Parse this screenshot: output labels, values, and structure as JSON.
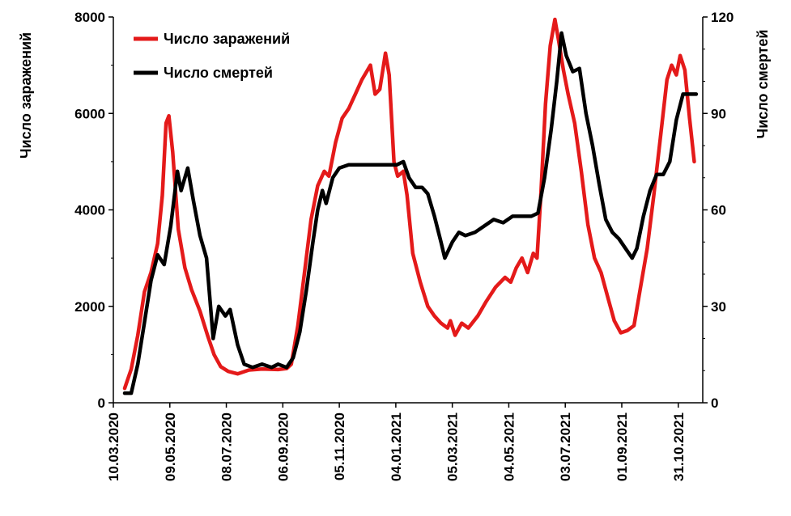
{
  "chart_data": {
    "type": "line",
    "title": "",
    "x_tick_labels": [
      "10.03.2020",
      "09.05.2020",
      "08.07.2020",
      "06.09.2020",
      "05.11.2020",
      "04.01.2021",
      "05.03.2021",
      "04.05.2021",
      "03.07.2021",
      "01.09.2021",
      "31.10.2021"
    ],
    "x_range": [
      "10.03.2020",
      "26.11.2021"
    ],
    "y_left": {
      "label": "Число заражений",
      "ylim": [
        0,
        8000
      ],
      "ticks": [
        "0",
        "2000",
        "4000",
        "6000",
        "8000"
      ]
    },
    "y_right": {
      "label": "Число смертей",
      "ylim": [
        0,
        120
      ],
      "ticks": [
        "0",
        "30",
        "60",
        "90",
        "120"
      ]
    },
    "grid": false,
    "legend_position": "top-left",
    "series": [
      {
        "name": "Число заражений",
        "axis": "left",
        "color": "#e41a1a",
        "points": [
          [
            "2020-03-22",
            300
          ],
          [
            "2020-03-29",
            700
          ],
          [
            "2020-04-05",
            1400
          ],
          [
            "2020-04-12",
            2300
          ],
          [
            "2020-04-19",
            2700
          ],
          [
            "2020-04-26",
            3300
          ],
          [
            "2020-05-01",
            4300
          ],
          [
            "2020-05-05",
            5800
          ],
          [
            "2020-05-08",
            5950
          ],
          [
            "2020-05-12",
            5200
          ],
          [
            "2020-05-18",
            3600
          ],
          [
            "2020-05-25",
            2800
          ],
          [
            "2020-06-01",
            2350
          ],
          [
            "2020-06-10",
            1900
          ],
          [
            "2020-06-18",
            1400
          ],
          [
            "2020-06-25",
            1000
          ],
          [
            "2020-07-02",
            750
          ],
          [
            "2020-07-10",
            650
          ],
          [
            "2020-07-20",
            600
          ],
          [
            "2020-08-01",
            680
          ],
          [
            "2020-08-15",
            700
          ],
          [
            "2020-09-01",
            690
          ],
          [
            "2020-09-10",
            710
          ],
          [
            "2020-09-15",
            800
          ],
          [
            "2020-09-22",
            1600
          ],
          [
            "2020-09-29",
            2700
          ],
          [
            "2020-10-06",
            3800
          ],
          [
            "2020-10-13",
            4500
          ],
          [
            "2020-10-20",
            4800
          ],
          [
            "2020-10-25",
            4700
          ],
          [
            "2020-11-01",
            5400
          ],
          [
            "2020-11-08",
            5900
          ],
          [
            "2020-11-15",
            6100
          ],
          [
            "2020-11-22",
            6400
          ],
          [
            "2020-11-29",
            6700
          ],
          [
            "2020-12-05",
            6900
          ],
          [
            "2020-12-08",
            7000
          ],
          [
            "2020-12-13",
            6400
          ],
          [
            "2020-12-18",
            6500
          ],
          [
            "2020-12-24",
            7250
          ],
          [
            "2020-12-28",
            6800
          ],
          [
            "2021-01-02",
            5000
          ],
          [
            "2021-01-06",
            4700
          ],
          [
            "2021-01-12",
            4800
          ],
          [
            "2021-01-16",
            4300
          ],
          [
            "2021-01-22",
            3100
          ],
          [
            "2021-01-30",
            2500
          ],
          [
            "2021-02-07",
            2000
          ],
          [
            "2021-02-14",
            1800
          ],
          [
            "2021-02-21",
            1650
          ],
          [
            "2021-02-28",
            1550
          ],
          [
            "2021-03-03",
            1700
          ],
          [
            "2021-03-08",
            1400
          ],
          [
            "2021-03-15",
            1650
          ],
          [
            "2021-03-22",
            1550
          ],
          [
            "2021-04-01",
            1800
          ],
          [
            "2021-04-10",
            2100
          ],
          [
            "2021-04-20",
            2400
          ],
          [
            "2021-04-30",
            2600
          ],
          [
            "2021-05-06",
            2500
          ],
          [
            "2021-05-12",
            2800
          ],
          [
            "2021-05-18",
            3000
          ],
          [
            "2021-05-24",
            2700
          ],
          [
            "2021-05-30",
            3100
          ],
          [
            "2021-06-03",
            3000
          ],
          [
            "2021-06-07",
            4300
          ],
          [
            "2021-06-12",
            6200
          ],
          [
            "2021-06-17",
            7400
          ],
          [
            "2021-06-22",
            7950
          ],
          [
            "2021-06-26",
            7500
          ],
          [
            "2021-07-01",
            6900
          ],
          [
            "2021-07-06",
            6400
          ],
          [
            "2021-07-13",
            5800
          ],
          [
            "2021-07-20",
            4800
          ],
          [
            "2021-07-27",
            3700
          ],
          [
            "2021-08-03",
            3000
          ],
          [
            "2021-08-10",
            2700
          ],
          [
            "2021-08-17",
            2200
          ],
          [
            "2021-08-24",
            1700
          ],
          [
            "2021-08-31",
            1450
          ],
          [
            "2021-09-07",
            1500
          ],
          [
            "2021-09-14",
            1600
          ],
          [
            "2021-09-21",
            2400
          ],
          [
            "2021-09-28",
            3200
          ],
          [
            "2021-10-05",
            4300
          ],
          [
            "2021-10-12",
            5500
          ],
          [
            "2021-10-19",
            6700
          ],
          [
            "2021-10-24",
            7000
          ],
          [
            "2021-10-29",
            6800
          ],
          [
            "2021-11-02",
            7200
          ],
          [
            "2021-11-07",
            6900
          ],
          [
            "2021-11-12",
            5900
          ],
          [
            "2021-11-17",
            5000
          ]
        ]
      },
      {
        "name": "Число смертей",
        "axis": "right",
        "color": "#000000",
        "points": [
          [
            "2020-03-22",
            3
          ],
          [
            "2020-03-29",
            3
          ],
          [
            "2020-04-05",
            12
          ],
          [
            "2020-04-12",
            25
          ],
          [
            "2020-04-19",
            38
          ],
          [
            "2020-04-26",
            46
          ],
          [
            "2020-05-03",
            43
          ],
          [
            "2020-05-10",
            55
          ],
          [
            "2020-05-17",
            72
          ],
          [
            "2020-05-21",
            66
          ],
          [
            "2020-05-28",
            73
          ],
          [
            "2020-06-03",
            63
          ],
          [
            "2020-06-10",
            52
          ],
          [
            "2020-06-17",
            45
          ],
          [
            "2020-06-24",
            20
          ],
          [
            "2020-06-30",
            30
          ],
          [
            "2020-07-07",
            27
          ],
          [
            "2020-07-12",
            29
          ],
          [
            "2020-07-20",
            18
          ],
          [
            "2020-07-27",
            12
          ],
          [
            "2020-08-05",
            11
          ],
          [
            "2020-08-15",
            12
          ],
          [
            "2020-08-25",
            11
          ],
          [
            "2020-09-01",
            12
          ],
          [
            "2020-09-10",
            11
          ],
          [
            "2020-09-17",
            14
          ],
          [
            "2020-09-24",
            22
          ],
          [
            "2020-10-01",
            35
          ],
          [
            "2020-10-08",
            50
          ],
          [
            "2020-10-13",
            60
          ],
          [
            "2020-10-18",
            66
          ],
          [
            "2020-10-22",
            62
          ],
          [
            "2020-10-29",
            70
          ],
          [
            "2020-11-05",
            73
          ],
          [
            "2020-11-15",
            74
          ],
          [
            "2020-11-25",
            74
          ],
          [
            "2020-12-05",
            74
          ],
          [
            "2020-12-15",
            74
          ],
          [
            "2020-12-25",
            74
          ],
          [
            "2021-01-05",
            74
          ],
          [
            "2021-01-12",
            75
          ],
          [
            "2021-01-18",
            70
          ],
          [
            "2021-01-25",
            67
          ],
          [
            "2021-02-01",
            67
          ],
          [
            "2021-02-07",
            65
          ],
          [
            "2021-02-14",
            58
          ],
          [
            "2021-02-21",
            50
          ],
          [
            "2021-02-25",
            45
          ],
          [
            "2021-03-05",
            50
          ],
          [
            "2021-03-12",
            53
          ],
          [
            "2021-03-19",
            52
          ],
          [
            "2021-03-29",
            53
          ],
          [
            "2021-04-08",
            55
          ],
          [
            "2021-04-18",
            57
          ],
          [
            "2021-04-28",
            56
          ],
          [
            "2021-05-08",
            58
          ],
          [
            "2021-05-18",
            58
          ],
          [
            "2021-05-28",
            58
          ],
          [
            "2021-06-04",
            59
          ],
          [
            "2021-06-11",
            70
          ],
          [
            "2021-06-18",
            85
          ],
          [
            "2021-06-24",
            100
          ],
          [
            "2021-06-29",
            115
          ],
          [
            "2021-07-04",
            108
          ],
          [
            "2021-07-11",
            103
          ],
          [
            "2021-07-18",
            104
          ],
          [
            "2021-07-25",
            90
          ],
          [
            "2021-08-01",
            80
          ],
          [
            "2021-08-08",
            68
          ],
          [
            "2021-08-15",
            57
          ],
          [
            "2021-08-22",
            53
          ],
          [
            "2021-08-29",
            51
          ],
          [
            "2021-09-05",
            48
          ],
          [
            "2021-09-12",
            45
          ],
          [
            "2021-09-17",
            48
          ],
          [
            "2021-09-24",
            58
          ],
          [
            "2021-10-01",
            66
          ],
          [
            "2021-10-08",
            71
          ],
          [
            "2021-10-15",
            71
          ],
          [
            "2021-10-22",
            75
          ],
          [
            "2021-10-29",
            88
          ],
          [
            "2021-11-05",
            96
          ],
          [
            "2021-11-12",
            96
          ],
          [
            "2021-11-19",
            96
          ]
        ]
      }
    ]
  }
}
